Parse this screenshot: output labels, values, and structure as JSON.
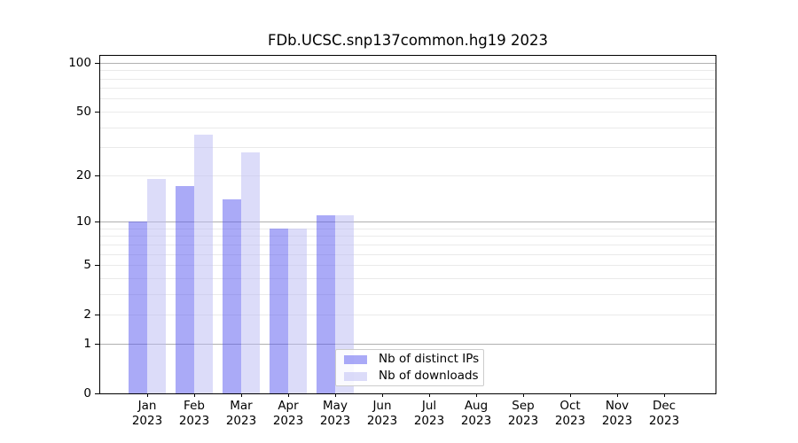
{
  "chart_data": {
    "type": "bar",
    "title": "FDb.UCSC.snp137common.hg19 2023",
    "xlabel": "",
    "ylabel": "",
    "categories": [
      "Jan",
      "Feb",
      "Mar",
      "Apr",
      "May",
      "Jun",
      "Jul",
      "Aug",
      "Sep",
      "Oct",
      "Nov",
      "Dec"
    ],
    "tick_label_year": "2023",
    "series": [
      {
        "name": "Nb of distinct IPs",
        "values": [
          10,
          17,
          14,
          9,
          11,
          0,
          0,
          0,
          0,
          0,
          0,
          0
        ],
        "color": "rgba(85,85,240,0.5)"
      },
      {
        "name": "Nb of downloads",
        "values": [
          19,
          36,
          28,
          9,
          11,
          0,
          0,
          0,
          0,
          0,
          0,
          0
        ],
        "color": "rgba(185,185,243,0.5)"
      }
    ],
    "yscale": "log1p",
    "ylim": [
      0,
      110
    ],
    "yticks": [
      0,
      1,
      2,
      5,
      10,
      20,
      50,
      100
    ],
    "major_gridlines": [
      1,
      10,
      100
    ],
    "minor_gridlines": [
      2,
      3,
      4,
      5,
      6,
      7,
      8,
      9,
      20,
      30,
      40,
      50,
      60,
      70,
      80,
      90
    ],
    "grid": true,
    "legend_position": "inside lower-center"
  },
  "colors": {
    "ips_bar": "rgba(85,85,240,0.5)",
    "downloads_bar": "rgba(185,185,243,0.5)",
    "grid_major": "#b0b0b0",
    "grid_minor": "#eaeaea",
    "axis": "#000000",
    "legend_border": "#cccccc",
    "background": "#ffffff"
  }
}
